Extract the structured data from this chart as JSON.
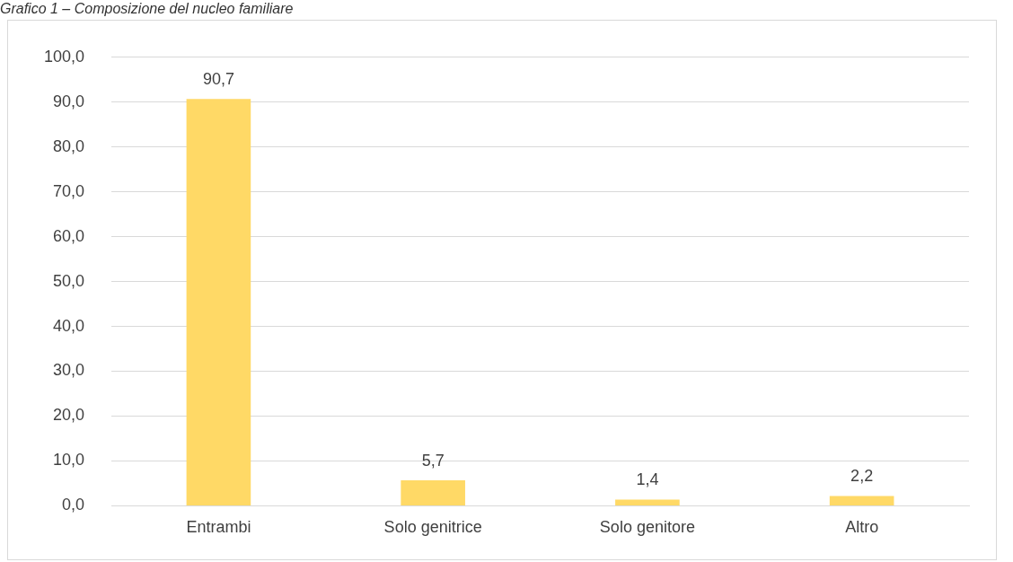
{
  "chart_data": {
    "type": "bar",
    "title": "Grafico 1 – Composizione del nucleo familiare",
    "categories": [
      "Entrambi",
      "Solo genitrice",
      "Solo genitore",
      "Altro"
    ],
    "values": [
      90.7,
      5.7,
      1.4,
      2.2
    ],
    "color": "#ffd966",
    "value_labels": [
      "90,7",
      "5,7",
      "1,4",
      "2,2"
    ],
    "ylim": [
      0,
      100
    ],
    "yticks": [
      {
        "value": 0,
        "label": "0,0"
      },
      {
        "value": 10,
        "label": "10,0"
      },
      {
        "value": 20,
        "label": "20,0"
      },
      {
        "value": 30,
        "label": "30,0"
      },
      {
        "value": 40,
        "label": "40,0"
      },
      {
        "value": 50,
        "label": "50,0"
      },
      {
        "value": 60,
        "label": "60,0"
      },
      {
        "value": 70,
        "label": "70,0"
      },
      {
        "value": 80,
        "label": "80,0"
      },
      {
        "value": 90,
        "label": "90,0"
      },
      {
        "value": 100,
        "label": "100,0"
      }
    ],
    "grid": "y"
  }
}
